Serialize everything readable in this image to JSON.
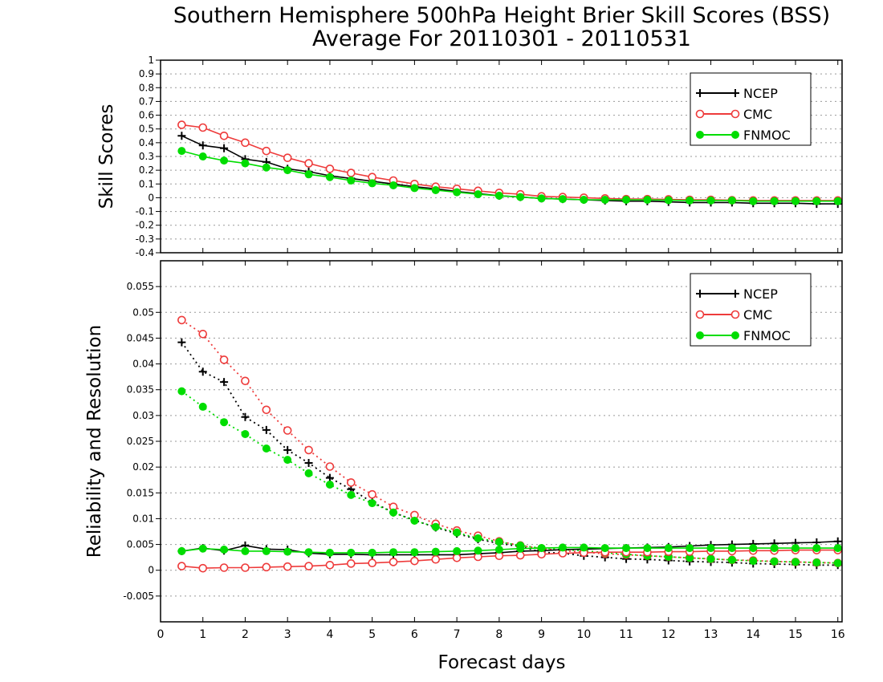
{
  "title_line1": "Southern Hemisphere 500hPa Height Brier Skill Scores (BSS)",
  "title_line2": "Average For 20110301 - 20110531",
  "xlabel": "Forecast days",
  "colors": {
    "NCEP": "#000000",
    "CMC": "#ee3b3b",
    "FNMOC": "#00dd00"
  },
  "chart_data": [
    {
      "type": "line",
      "ylabel": "Skill Scores",
      "xlim": [
        0,
        16.1
      ],
      "ylim": [
        -0.4,
        1
      ],
      "yticks": [
        "-0.4",
        "-0.3",
        "-0.2",
        "-0.1",
        "0",
        "0.1",
        "0.2",
        "0.3",
        "0.4",
        "0.5",
        "0.6",
        "0.7",
        "0.8",
        "0.9",
        "1"
      ],
      "xticks": [
        "0",
        "1",
        "2",
        "3",
        "4",
        "5",
        "6",
        "7",
        "8",
        "9",
        "10",
        "11",
        "12",
        "13",
        "14",
        "15",
        "16"
      ],
      "grid": true,
      "legend": "top-right",
      "x": [
        0.5,
        1,
        1.5,
        2,
        2.5,
        3,
        3.5,
        4,
        4.5,
        5,
        5.5,
        6,
        6.5,
        7,
        7.5,
        8,
        8.5,
        9,
        9.5,
        10,
        10.5,
        11,
        11.5,
        12,
        12.5,
        13,
        13.5,
        14,
        14.5,
        15,
        15.5,
        16
      ],
      "series": [
        {
          "name": "NCEP",
          "style": "solid",
          "marker": "plus",
          "values": [
            0.45,
            0.38,
            0.36,
            0.28,
            0.26,
            0.21,
            0.19,
            0.16,
            0.14,
            0.12,
            0.1,
            0.08,
            0.065,
            0.045,
            0.03,
            0.015,
            0.005,
            -0.005,
            -0.01,
            -0.015,
            -0.02,
            -0.025,
            -0.025,
            -0.03,
            -0.035,
            -0.035,
            -0.035,
            -0.04,
            -0.04,
            -0.04,
            -0.045,
            -0.045
          ]
        },
        {
          "name": "CMC",
          "style": "solid",
          "marker": "open-circle",
          "values": [
            0.53,
            0.51,
            0.45,
            0.4,
            0.34,
            0.29,
            0.25,
            0.21,
            0.18,
            0.15,
            0.125,
            0.1,
            0.08,
            0.065,
            0.05,
            0.035,
            0.025,
            0.01,
            0.005,
            0.0,
            -0.005,
            -0.01,
            -0.01,
            -0.012,
            -0.015,
            -0.015,
            -0.018,
            -0.02,
            -0.02,
            -0.02,
            -0.02,
            -0.02
          ]
        },
        {
          "name": "FNMOC",
          "style": "solid",
          "marker": "filled-circle",
          "values": [
            0.34,
            0.3,
            0.27,
            0.25,
            0.22,
            0.2,
            0.17,
            0.15,
            0.125,
            0.105,
            0.09,
            0.07,
            0.055,
            0.04,
            0.025,
            0.015,
            0.005,
            -0.005,
            -0.01,
            -0.015,
            -0.015,
            -0.015,
            -0.015,
            -0.018,
            -0.02,
            -0.02,
            -0.02,
            -0.025,
            -0.025,
            -0.025,
            -0.025,
            -0.025
          ]
        }
      ]
    },
    {
      "type": "line",
      "ylabel": "Reliability and Resolution",
      "xlim": [
        0,
        16.1
      ],
      "ylim": [
        -0.01,
        0.06
      ],
      "yticks": [
        "-0.005",
        "0",
        "0.005",
        "0.01",
        "0.015",
        "0.02",
        "0.025",
        "0.03",
        "0.035",
        "0.04",
        "0.045",
        "0.05",
        "0.055"
      ],
      "xticks": [
        "0",
        "1",
        "2",
        "3",
        "4",
        "5",
        "6",
        "7",
        "8",
        "9",
        "10",
        "11",
        "12",
        "13",
        "14",
        "15",
        "16"
      ],
      "grid": true,
      "legend": "top-right",
      "x": [
        0.5,
        1,
        1.5,
        2,
        2.5,
        3,
        3.5,
        4,
        4.5,
        5,
        5.5,
        6,
        6.5,
        7,
        7.5,
        8,
        8.5,
        9,
        9.5,
        10,
        10.5,
        11,
        11.5,
        12,
        12.5,
        13,
        13.5,
        14,
        14.5,
        15,
        15.5,
        16
      ],
      "series": [
        {
          "name": "NCEP",
          "style": "dotted",
          "marker": "plus",
          "values": [
            0.0442,
            0.0385,
            0.0365,
            0.0297,
            0.0272,
            0.0233,
            0.0208,
            0.0179,
            0.0157,
            0.0132,
            0.0112,
            0.0097,
            0.0083,
            0.0071,
            0.006,
            0.0052,
            0.0046,
            0.0035,
            0.0033,
            0.0028,
            0.0025,
            0.0022,
            0.0021,
            0.0019,
            0.0017,
            0.0016,
            0.0015,
            0.0013,
            0.0012,
            0.0011,
            0.001,
            0.001
          ]
        },
        {
          "name": "CMC",
          "style": "dotted",
          "marker": "open-circle",
          "values": [
            0.0485,
            0.0458,
            0.0408,
            0.0367,
            0.0311,
            0.0271,
            0.0233,
            0.0201,
            0.017,
            0.0147,
            0.0123,
            0.0107,
            0.009,
            0.0077,
            0.0067,
            0.0056,
            0.0048,
            0.0042,
            0.0038,
            0.0035,
            0.0032,
            0.003,
            0.0028,
            0.0026,
            0.0024,
            0.0022,
            0.002,
            0.0019,
            0.0017,
            0.0016,
            0.0015,
            0.0014
          ]
        },
        {
          "name": "FNMOC",
          "style": "dotted",
          "marker": "filled-circle",
          "values": [
            0.0347,
            0.0317,
            0.0287,
            0.0264,
            0.0236,
            0.0214,
            0.0188,
            0.0166,
            0.0146,
            0.013,
            0.0112,
            0.0096,
            0.0084,
            0.0073,
            0.0062,
            0.0055,
            0.0048,
            0.0043,
            0.004,
            0.0038,
            0.0034,
            0.0031,
            0.0028,
            0.0026,
            0.0024,
            0.0022,
            0.002,
            0.0018,
            0.0017,
            0.0016,
            0.0015,
            0.0014
          ]
        },
        {
          "name": "NCEP",
          "style": "solid",
          "marker": "plus",
          "values": [
            0.0037,
            0.0043,
            0.0038,
            0.0048,
            0.0041,
            0.004,
            0.0033,
            0.0031,
            0.0031,
            0.003,
            0.003,
            0.003,
            0.003,
            0.003,
            0.0032,
            0.0034,
            0.0037,
            0.0038,
            0.004,
            0.0041,
            0.0042,
            0.0043,
            0.0044,
            0.0045,
            0.0047,
            0.0049,
            0.005,
            0.0051,
            0.0052,
            0.0053,
            0.0054,
            0.0056
          ]
        },
        {
          "name": "CMC",
          "style": "solid",
          "marker": "open-circle",
          "values": [
            0.0008,
            0.0004,
            0.0005,
            0.0005,
            0.0006,
            0.0007,
            0.0008,
            0.001,
            0.0013,
            0.0014,
            0.0016,
            0.0018,
            0.0021,
            0.0024,
            0.0026,
            0.0028,
            0.0029,
            0.0031,
            0.0033,
            0.0034,
            0.0035,
            0.0035,
            0.0035,
            0.0036,
            0.0036,
            0.0037,
            0.0037,
            0.0038,
            0.0038,
            0.0039,
            0.0039,
            0.0039
          ]
        },
        {
          "name": "FNMOC",
          "style": "solid",
          "marker": "filled-circle",
          "values": [
            0.0037,
            0.0042,
            0.004,
            0.0037,
            0.0037,
            0.0036,
            0.0035,
            0.0034,
            0.0034,
            0.0034,
            0.0035,
            0.0035,
            0.0036,
            0.0037,
            0.0038,
            0.004,
            0.0042,
            0.0043,
            0.0044,
            0.0044,
            0.0043,
            0.0043,
            0.0043,
            0.0043,
            0.0043,
            0.0043,
            0.0043,
            0.0043,
            0.0043,
            0.0043,
            0.0043,
            0.0043
          ]
        }
      ]
    }
  ]
}
